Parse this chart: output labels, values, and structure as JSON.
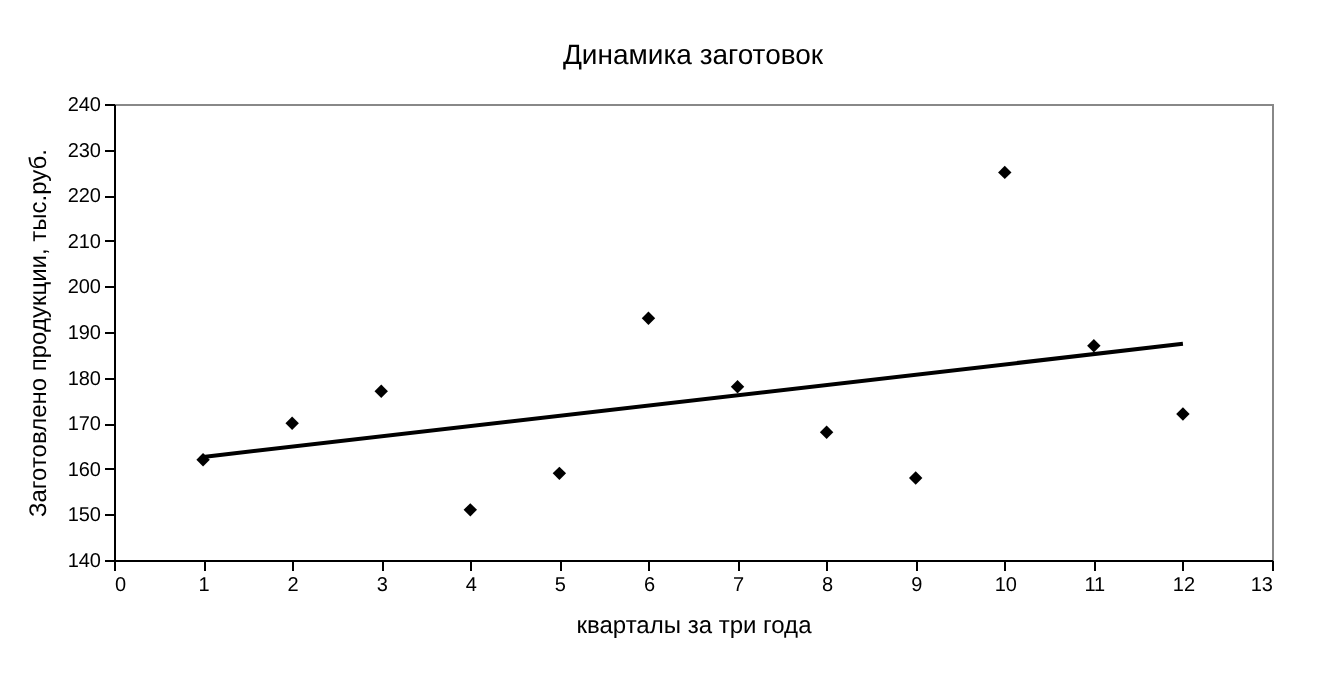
{
  "chart_data": {
    "type": "scatter",
    "title": "Динамика заготовок",
    "xlabel": "кварталы за три года",
    "ylabel": "Заготовлено продукции, тыс.руб.",
    "x": [
      1,
      2,
      3,
      4,
      5,
      6,
      7,
      8,
      9,
      10,
      11,
      12
    ],
    "series": [
      {
        "color": "#000000",
        "marker": "diamond",
        "values": [
          162,
          170,
          177,
          151,
          159,
          193,
          178,
          168,
          158,
          225,
          187,
          172
        ]
      },
      {
        "type": "line",
        "color": "#000000",
        "marker": "none",
        "x": [
          1,
          12
        ],
        "values": [
          162.6,
          187.4
        ]
      }
    ],
    "xlim": [
      0,
      13
    ],
    "xticks": [
      0,
      1,
      2,
      3,
      4,
      5,
      6,
      7,
      8,
      9,
      10,
      11,
      12,
      13
    ],
    "ylim": [
      140,
      240
    ],
    "yticks": [
      140,
      150,
      160,
      170,
      180,
      190,
      200,
      210,
      220,
      230,
      240
    ],
    "grid": false
  }
}
